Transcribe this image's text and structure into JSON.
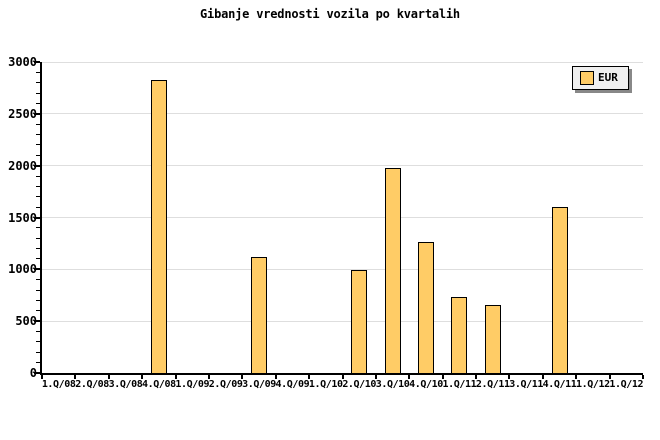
{
  "chart_data": {
    "type": "bar",
    "title": "Gibanje vrednosti vozila po kvartalih",
    "xlabel": "",
    "ylabel": "",
    "categories": [
      "1.Q/08",
      "2.Q/08",
      "3.Q/08",
      "4.Q/08",
      "1.Q/09",
      "2.Q/09",
      "3.Q/09",
      "4.Q/09",
      "1.Q/10",
      "2.Q/10",
      "3.Q/10",
      "4.Q/10",
      "1.Q/11",
      "2.Q/11",
      "3.Q/11",
      "4.Q/11",
      "1.Q/12",
      "1.Q/12"
    ],
    "series": [
      {
        "name": "EUR",
        "values": [
          0,
          0,
          0,
          2830,
          0,
          0,
          1120,
          0,
          0,
          990,
          1980,
          1260,
          730,
          655,
          0,
          1600,
          0,
          0
        ]
      }
    ],
    "ylim": [
      0,
      3000
    ],
    "ytick_step": 500,
    "yminor_step": 100,
    "ytick_labels": [
      "0",
      "500",
      "1000",
      "1500",
      "2000",
      "2500",
      "3000"
    ],
    "grid": "horizontal",
    "legend_position": "top-right",
    "bar_color": "#ffcc66",
    "bar_border_color": "#000000",
    "grid_color": "#dedede",
    "axis_color": "#000000"
  },
  "legend": {
    "label": "EUR"
  }
}
